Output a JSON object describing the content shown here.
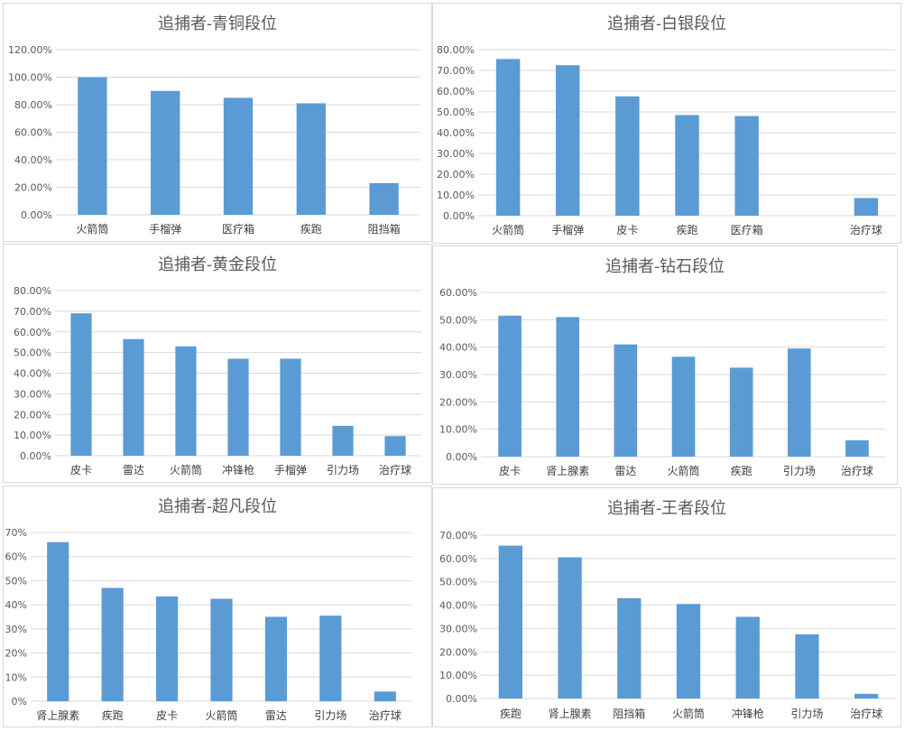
{
  "bar_color": "#5b9bd5",
  "grid_color": "#d9d9d9",
  "text_color": "#595959",
  "chart_data": [
    {
      "type": "bar",
      "title": "追捕者-青铜段位",
      "categories": [
        "火箭筒",
        "手榴弹",
        "医疗箱",
        "疾跑",
        "阻挡箱"
      ],
      "values": [
        100,
        90,
        85,
        81,
        23
      ],
      "ylim": [
        0,
        120
      ],
      "ystep": 20,
      "ytick_labels": [
        "0.00%",
        "20.00%",
        "40.00%",
        "60.00%",
        "80.00%",
        "100.00%",
        "120.00%"
      ],
      "xlabel": "",
      "ylabel": ""
    },
    {
      "type": "bar",
      "title": "追捕者-白银段位",
      "categories": [
        "火箭筒",
        "手榴弹",
        "皮卡",
        "疾跑",
        "医疗箱",
        "",
        "治疗球"
      ],
      "values": [
        75.5,
        72.5,
        57.5,
        48.5,
        48,
        null,
        8.5
      ],
      "ylim": [
        0,
        80
      ],
      "ystep": 10,
      "ytick_labels": [
        "0.00%",
        "10.00%",
        "20.00%",
        "30.00%",
        "40.00%",
        "50.00%",
        "60.00%",
        "70.00%",
        "80.00%"
      ],
      "xlabel": "",
      "ylabel": ""
    },
    {
      "type": "bar",
      "title": "追捕者-黄金段位",
      "categories": [
        "皮卡",
        "雷达",
        "火箭筒",
        "冲锋枪",
        "手榴弹",
        "引力场",
        "治疗球"
      ],
      "values": [
        69,
        56.5,
        53,
        47,
        47,
        14.5,
        9.5
      ],
      "ylim": [
        0,
        80
      ],
      "ystep": 10,
      "ytick_labels": [
        "0.00%",
        "10.00%",
        "20.00%",
        "30.00%",
        "40.00%",
        "50.00%",
        "60.00%",
        "70.00%",
        "80.00%"
      ],
      "xlabel": "",
      "ylabel": ""
    },
    {
      "type": "bar",
      "title": "追捕者-钻石段位",
      "categories": [
        "皮卡",
        "肾上腺素",
        "雷达",
        "火箭筒",
        "疾跑",
        "引力场",
        "治疗球"
      ],
      "values": [
        51.5,
        51,
        41,
        36.5,
        32.5,
        39.5,
        6
      ],
      "ylim": [
        0,
        60
      ],
      "ystep": 10,
      "ytick_labels": [
        "0.00%",
        "10.00%",
        "20.00%",
        "30.00%",
        "40.00%",
        "50.00%",
        "60.00%"
      ],
      "xlabel": "",
      "ylabel": ""
    },
    {
      "type": "bar",
      "title": "追捕者-超凡段位",
      "categories": [
        "肾上腺素",
        "疾跑",
        "皮卡",
        "火箭筒",
        "雷达",
        "引力场",
        "治疗球"
      ],
      "values": [
        66,
        47,
        43.5,
        42.5,
        35,
        35.5,
        4
      ],
      "ylim": [
        0,
        70
      ],
      "ystep": 10,
      "ytick_labels": [
        "0%",
        "10%",
        "20%",
        "30%",
        "40%",
        "50%",
        "60%",
        "70%"
      ],
      "xlabel": "",
      "ylabel": ""
    },
    {
      "type": "bar",
      "title": "追捕者-王者段位",
      "categories": [
        "疾跑",
        "肾上腺素",
        "阻挡箱",
        "火箭筒",
        "冲锋枪",
        "引力场",
        "治疗球"
      ],
      "values": [
        65.5,
        60.5,
        43,
        40.5,
        35,
        27.5,
        2
      ],
      "ylim": [
        0,
        70
      ],
      "ystep": 10,
      "ytick_labels": [
        "0.00%",
        "10.00%",
        "20.00%",
        "30.00%",
        "40.00%",
        "50.00%",
        "60.00%",
        "70.00%"
      ],
      "xlabel": "",
      "ylabel": ""
    }
  ]
}
